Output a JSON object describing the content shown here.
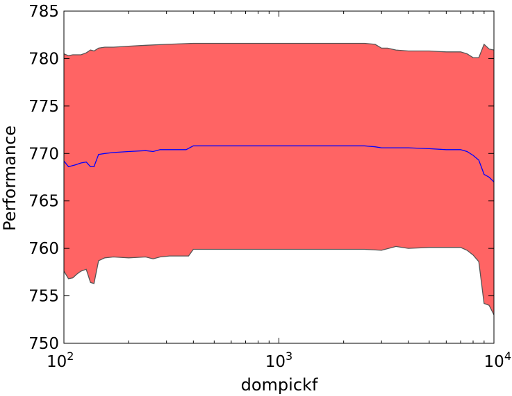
{
  "chart_data": {
    "type": "area",
    "title": "",
    "xlabel": "dompickf",
    "ylabel": "Performance",
    "xscale": "log",
    "xlim": [
      100,
      10000
    ],
    "ylim": [
      750,
      785
    ],
    "grid": false,
    "legend": "none",
    "x_ticks": [
      {
        "value": 100,
        "base": "10",
        "exp": "2"
      },
      {
        "value": 1000,
        "base": "10",
        "exp": "3"
      },
      {
        "value": 10000,
        "base": "10",
        "exp": "4"
      }
    ],
    "y_ticks": [
      750,
      755,
      760,
      765,
      770,
      775,
      780,
      785
    ],
    "colors": {
      "band_fill": "#ff6464",
      "band_edge": "#555555",
      "mean_line": "#0000ff"
    },
    "series": [
      {
        "role": "mean",
        "x": [
          100,
          105,
          113,
          120,
          127,
          133,
          138,
          145,
          155,
          170,
          200,
          240,
          260,
          280,
          310,
          350,
          370,
          400,
          500,
          700,
          1000,
          1500,
          2000,
          2500,
          2800,
          3000,
          3200,
          3500,
          4000,
          5000,
          6000,
          7000,
          7500,
          8000,
          8500,
          9000,
          9500,
          10000
        ],
        "values": [
          769.2,
          768.6,
          768.8,
          769.0,
          769.1,
          768.6,
          768.6,
          769.9,
          770.0,
          770.1,
          770.2,
          770.3,
          770.2,
          770.4,
          770.4,
          770.4,
          770.4,
          770.8,
          770.8,
          770.8,
          770.8,
          770.8,
          770.8,
          770.8,
          770.7,
          770.6,
          770.6,
          770.6,
          770.6,
          770.5,
          770.4,
          770.4,
          770.2,
          769.8,
          769.3,
          767.8,
          767.5,
          767.0
        ]
      },
      {
        "role": "upper",
        "x": [
          100,
          105,
          110,
          120,
          127,
          133,
          138,
          145,
          155,
          170,
          200,
          240,
          300,
          400,
          600,
          1000,
          1500,
          2000,
          2500,
          2800,
          3000,
          3200,
          3500,
          4000,
          5000,
          6000,
          7000,
          7500,
          8000,
          8500,
          9000,
          9500,
          10000
        ],
        "values": [
          780.5,
          780.3,
          780.4,
          780.4,
          780.6,
          780.9,
          780.8,
          781.1,
          781.2,
          781.2,
          781.3,
          781.4,
          781.5,
          781.6,
          781.6,
          781.6,
          781.6,
          781.6,
          781.6,
          781.5,
          781.1,
          781.1,
          780.9,
          780.8,
          780.8,
          780.7,
          780.7,
          780.5,
          780.1,
          780.1,
          781.5,
          781.0,
          780.9
        ]
      },
      {
        "role": "lower",
        "x": [
          100,
          105,
          110,
          115,
          120,
          127,
          133,
          138,
          145,
          155,
          170,
          200,
          240,
          260,
          280,
          310,
          350,
          380,
          400,
          600,
          1000,
          1500,
          2000,
          2500,
          3000,
          3500,
          4000,
          5000,
          6000,
          7000,
          7500,
          8000,
          8500,
          9000,
          9500,
          10000
        ],
        "values": [
          757.6,
          756.8,
          756.9,
          757.3,
          757.6,
          757.8,
          756.4,
          756.3,
          758.7,
          759.0,
          759.1,
          759.0,
          759.1,
          758.9,
          759.1,
          759.2,
          759.2,
          759.2,
          759.9,
          759.9,
          759.9,
          759.9,
          759.9,
          759.9,
          759.8,
          760.2,
          760.0,
          760.1,
          760.1,
          760.1,
          759.8,
          759.3,
          758.6,
          754.2,
          754.0,
          753.0
        ]
      }
    ]
  }
}
